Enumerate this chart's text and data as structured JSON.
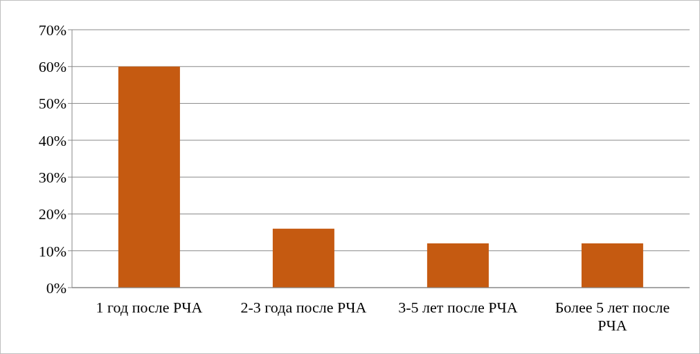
{
  "chart_data": {
    "type": "bar",
    "categories": [
      "1 год после РЧА",
      "2-3 года после РЧА",
      "3-5 лет после РЧА",
      "Более 5 лет после РЧА"
    ],
    "values": [
      60,
      16,
      12,
      12
    ],
    "color": "#c55a11",
    "ylim": [
      0,
      70
    ],
    "yticks": [
      {
        "value": 0,
        "label": "0%"
      },
      {
        "value": 10,
        "label": "10%"
      },
      {
        "value": 20,
        "label": "20%"
      },
      {
        "value": 30,
        "label": "30%"
      },
      {
        "value": 40,
        "label": "40%"
      },
      {
        "value": 50,
        "label": "50%"
      },
      {
        "value": 60,
        "label": "60%"
      },
      {
        "value": 70,
        "label": "70%"
      }
    ],
    "grid": "y",
    "legend": false
  }
}
